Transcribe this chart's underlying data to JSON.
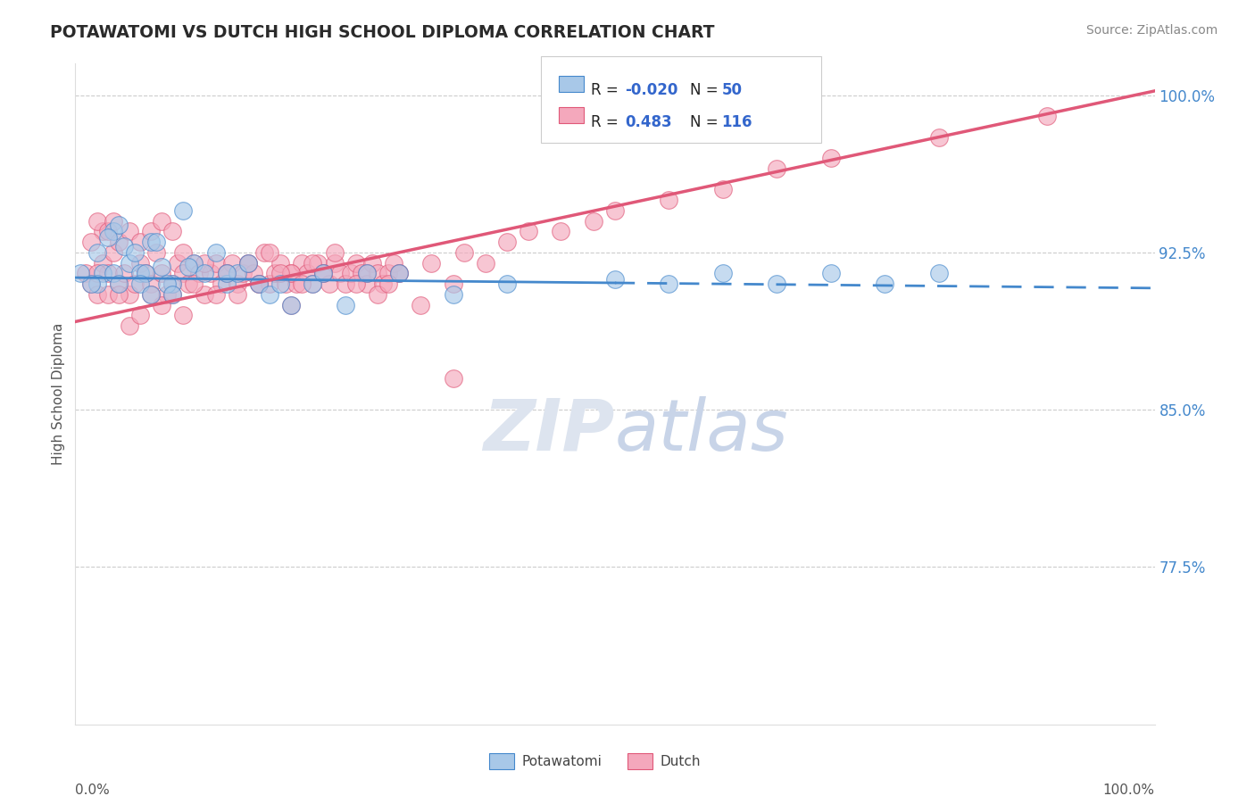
{
  "title": "POTAWATOMI VS DUTCH HIGH SCHOOL DIPLOMA CORRELATION CHART",
  "source_text": "Source: ZipAtlas.com",
  "ylabel": "High School Diploma",
  "right_yticks": [
    77.5,
    85.0,
    92.5,
    100.0
  ],
  "legend_r_values": [
    "-0.020",
    "0.483"
  ],
  "legend_n_values": [
    "50",
    "116"
  ],
  "blue_color": "#a8c8e8",
  "pink_color": "#f4a8bc",
  "blue_line_color": "#4488cc",
  "pink_line_color": "#e05878",
  "watermark_color": "#dde4ef",
  "xmin": 0,
  "xmax": 100,
  "ymin": 70,
  "ymax": 101.5,
  "blue_line_y0": 91.3,
  "blue_line_y1": 90.8,
  "pink_line_y0": 89.2,
  "pink_line_y1": 100.2,
  "blue_scatter_x": [
    3.5,
    4.0,
    10.0,
    5.0,
    6.0,
    7.0,
    8.0,
    2.0,
    3.0,
    9.0,
    4.5,
    6.5,
    11.0,
    12.0,
    13.0,
    7.5,
    14.0,
    2.5,
    5.5,
    8.5,
    15.0,
    16.0,
    17.0,
    10.5,
    18.0,
    19.0,
    20.0,
    3.5,
    22.0,
    23.0,
    14.0,
    9.0,
    6.0,
    4.0,
    2.0,
    7.0,
    25.0,
    27.0,
    30.0,
    35.0,
    40.0,
    50.0,
    55.0,
    60.0,
    65.0,
    70.0,
    75.0,
    80.0,
    1.5,
    0.5
  ],
  "blue_scatter_y": [
    93.5,
    93.8,
    94.5,
    92.0,
    91.5,
    93.0,
    91.8,
    92.5,
    93.2,
    91.0,
    92.8,
    91.5,
    92.0,
    91.5,
    92.5,
    93.0,
    91.0,
    91.5,
    92.5,
    91.0,
    91.5,
    92.0,
    91.0,
    91.8,
    90.5,
    91.0,
    90.0,
    91.5,
    91.0,
    91.5,
    91.5,
    90.5,
    91.0,
    91.0,
    91.0,
    90.5,
    90.0,
    91.5,
    91.5,
    90.5,
    91.0,
    91.2,
    91.0,
    91.5,
    91.0,
    91.5,
    91.0,
    91.5,
    91.0,
    91.5
  ],
  "pink_scatter_x": [
    1.0,
    1.5,
    2.0,
    2.5,
    3.0,
    3.5,
    4.0,
    4.5,
    5.0,
    5.5,
    6.0,
    6.5,
    7.0,
    7.5,
    8.0,
    8.5,
    9.0,
    9.5,
    10.0,
    10.5,
    11.0,
    11.5,
    12.0,
    12.5,
    13.0,
    13.5,
    14.0,
    14.5,
    15.0,
    15.5,
    16.0,
    16.5,
    17.0,
    17.5,
    18.0,
    18.5,
    19.0,
    19.5,
    20.0,
    20.5,
    21.0,
    21.5,
    22.0,
    22.5,
    23.0,
    23.5,
    24.0,
    24.5,
    25.0,
    25.5,
    26.0,
    26.5,
    27.0,
    27.5,
    28.0,
    28.5,
    29.0,
    29.5,
    30.0,
    2.5,
    2.0,
    1.5,
    3.0,
    3.5,
    4.0,
    5.0,
    6.0,
    7.0,
    8.0,
    9.0,
    10.0,
    12.0,
    14.0,
    16.0,
    18.0,
    20.0,
    22.0,
    24.0,
    26.0,
    30.0,
    32.0,
    35.0,
    35.0,
    28.0,
    20.0,
    15.0,
    10.0,
    8.0,
    5.0,
    3.0,
    2.0,
    4.0,
    6.0,
    7.0,
    9.0,
    11.0,
    13.0,
    17.0,
    19.0,
    21.0,
    23.0,
    27.0,
    29.0,
    33.0,
    36.0,
    38.0,
    40.0,
    42.0,
    45.0,
    48.0,
    50.0,
    55.0,
    60.0,
    65.0,
    70.0,
    80.0,
    90.0
  ],
  "pink_scatter_y": [
    91.5,
    91.0,
    90.5,
    92.0,
    91.5,
    92.5,
    91.0,
    91.5,
    90.5,
    91.0,
    92.0,
    91.5,
    91.0,
    92.5,
    91.5,
    90.5,
    91.0,
    92.0,
    91.5,
    91.0,
    92.0,
    91.5,
    90.5,
    91.5,
    92.0,
    91.0,
    91.5,
    92.0,
    91.0,
    91.5,
    92.0,
    91.5,
    91.0,
    92.5,
    91.0,
    91.5,
    92.0,
    91.0,
    91.5,
    91.0,
    92.0,
    91.5,
    91.0,
    92.0,
    91.5,
    91.0,
    92.0,
    91.5,
    91.0,
    91.5,
    92.0,
    91.5,
    91.0,
    92.0,
    91.5,
    91.0,
    91.5,
    92.0,
    91.5,
    93.5,
    94.0,
    93.0,
    93.5,
    94.0,
    93.0,
    93.5,
    93.0,
    93.5,
    94.0,
    93.5,
    92.5,
    92.0,
    91.5,
    92.0,
    92.5,
    91.5,
    92.0,
    92.5,
    91.0,
    91.5,
    90.0,
    91.0,
    86.5,
    90.5,
    90.0,
    90.5,
    89.5,
    90.0,
    89.0,
    90.5,
    91.5,
    90.5,
    89.5,
    90.5,
    90.5,
    91.0,
    90.5,
    91.0,
    91.5,
    91.0,
    91.5,
    91.5,
    91.0,
    92.0,
    92.5,
    92.0,
    93.0,
    93.5,
    93.5,
    94.0,
    94.5,
    95.0,
    95.5,
    96.5,
    97.0,
    98.0,
    99.0
  ]
}
